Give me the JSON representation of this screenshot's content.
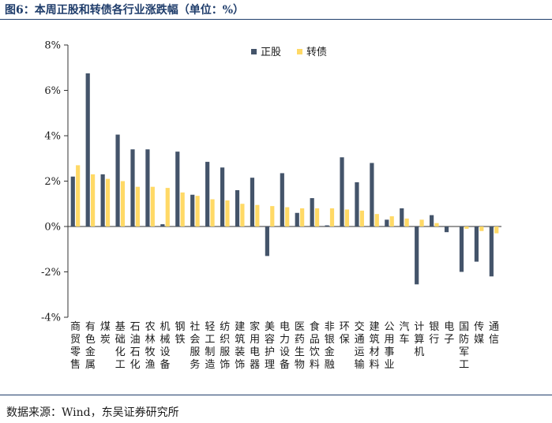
{
  "title": "图6：本周正股和转债各行业涨跌幅（单位：%）",
  "source": "数据来源：Wind，东吴证券研究所",
  "chart_data": {
    "type": "bar",
    "title": "",
    "xlabel": "",
    "ylabel": "",
    "ylim": [
      -4,
      8
    ],
    "yticks": [
      "-4%",
      "-2%",
      "0%",
      "2%",
      "4%",
      "6%",
      "8%"
    ],
    "legend_position": "top-right",
    "grid": false,
    "categories": [
      "商贸零售",
      "有色金属",
      "煤炭",
      "基础化工",
      "石油石化",
      "农林牧渔",
      "机械设备",
      "钢铁",
      "社会服务",
      "轻工制造",
      "纺织服饰",
      "建筑装饰",
      "家用电器",
      "美容护理",
      "电力设备",
      "医药生物",
      "食品饮料",
      "非银金融",
      "环保",
      "交通运输",
      "建筑材料",
      "公用事业",
      "汽车",
      "计算机",
      "银行",
      "电子",
      "国防军工",
      "传媒",
      "通信"
    ],
    "series": [
      {
        "name": "正股",
        "color": "#44546a",
        "values": [
          2.2,
          6.75,
          2.3,
          4.05,
          3.4,
          3.4,
          0.1,
          3.3,
          1.4,
          2.85,
          2.6,
          1.6,
          2.15,
          -1.3,
          2.35,
          0.6,
          1.25,
          0.05,
          3.05,
          1.95,
          2.8,
          0.3,
          0.8,
          -2.55,
          0.5,
          -0.25,
          -2.0,
          -1.55,
          -2.2
        ]
      },
      {
        "name": "转债",
        "color": "#ffd966",
        "values": [
          2.7,
          2.3,
          2.1,
          2.0,
          1.75,
          1.75,
          1.7,
          1.5,
          1.35,
          1.2,
          1.15,
          1.0,
          0.95,
          0.9,
          0.85,
          0.8,
          0.8,
          0.8,
          0.75,
          0.7,
          0.55,
          0.45,
          0.35,
          0.3,
          0.15,
          0.0,
          -0.1,
          -0.2,
          -0.3
        ]
      }
    ]
  }
}
